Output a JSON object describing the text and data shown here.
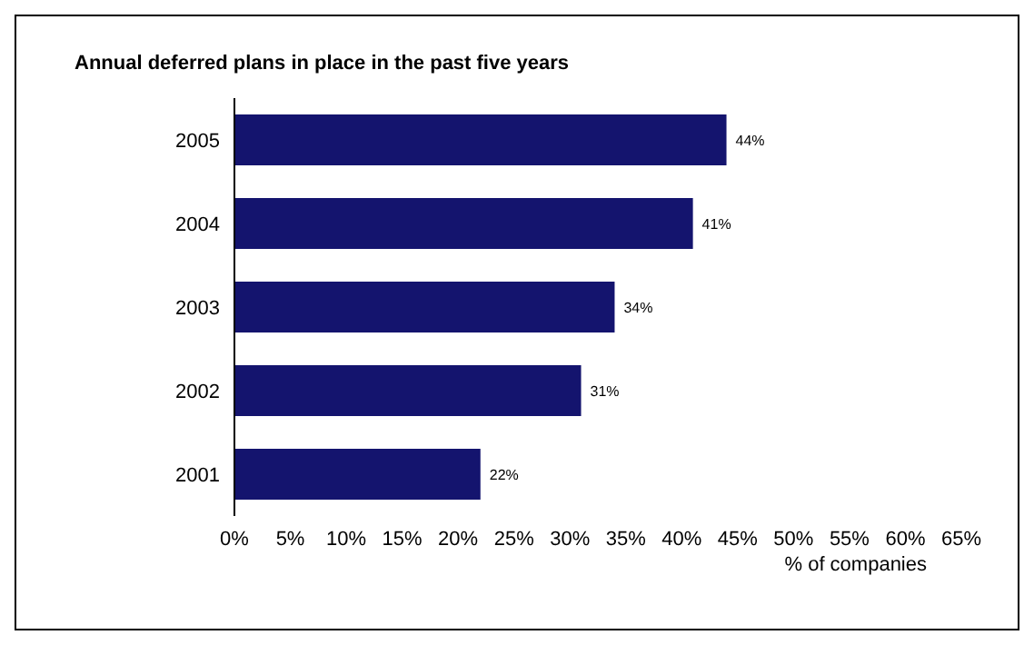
{
  "chart_data": {
    "type": "bar",
    "orientation": "horizontal",
    "title": "Annual deferred plans in place in the past five years",
    "xlabel": "% of companies",
    "categories": [
      "2005",
      "2004",
      "2003",
      "2002",
      "2001"
    ],
    "series": [
      {
        "color": "#14146e",
        "values": [
          44,
          41,
          34,
          31,
          22
        ],
        "value_labels": [
          "44%",
          "41%",
          "34%",
          "31%",
          "22%"
        ]
      }
    ],
    "xlim": [
      0,
      65
    ],
    "xticks": [
      {
        "value": 0,
        "label": "0%"
      },
      {
        "value": 5,
        "label": "5%"
      },
      {
        "value": 10,
        "label": "10%"
      },
      {
        "value": 15,
        "label": "15%"
      },
      {
        "value": 20,
        "label": "20%"
      },
      {
        "value": 25,
        "label": "25%"
      },
      {
        "value": 30,
        "label": "30%"
      },
      {
        "value": 35,
        "label": "35%"
      },
      {
        "value": 40,
        "label": "40%"
      },
      {
        "value": 45,
        "label": "45%"
      },
      {
        "value": 50,
        "label": "50%"
      },
      {
        "value": 55,
        "label": "55%"
      },
      {
        "value": 60,
        "label": "60%"
      },
      {
        "value": 65,
        "label": "65%"
      }
    ],
    "legend": false
  }
}
